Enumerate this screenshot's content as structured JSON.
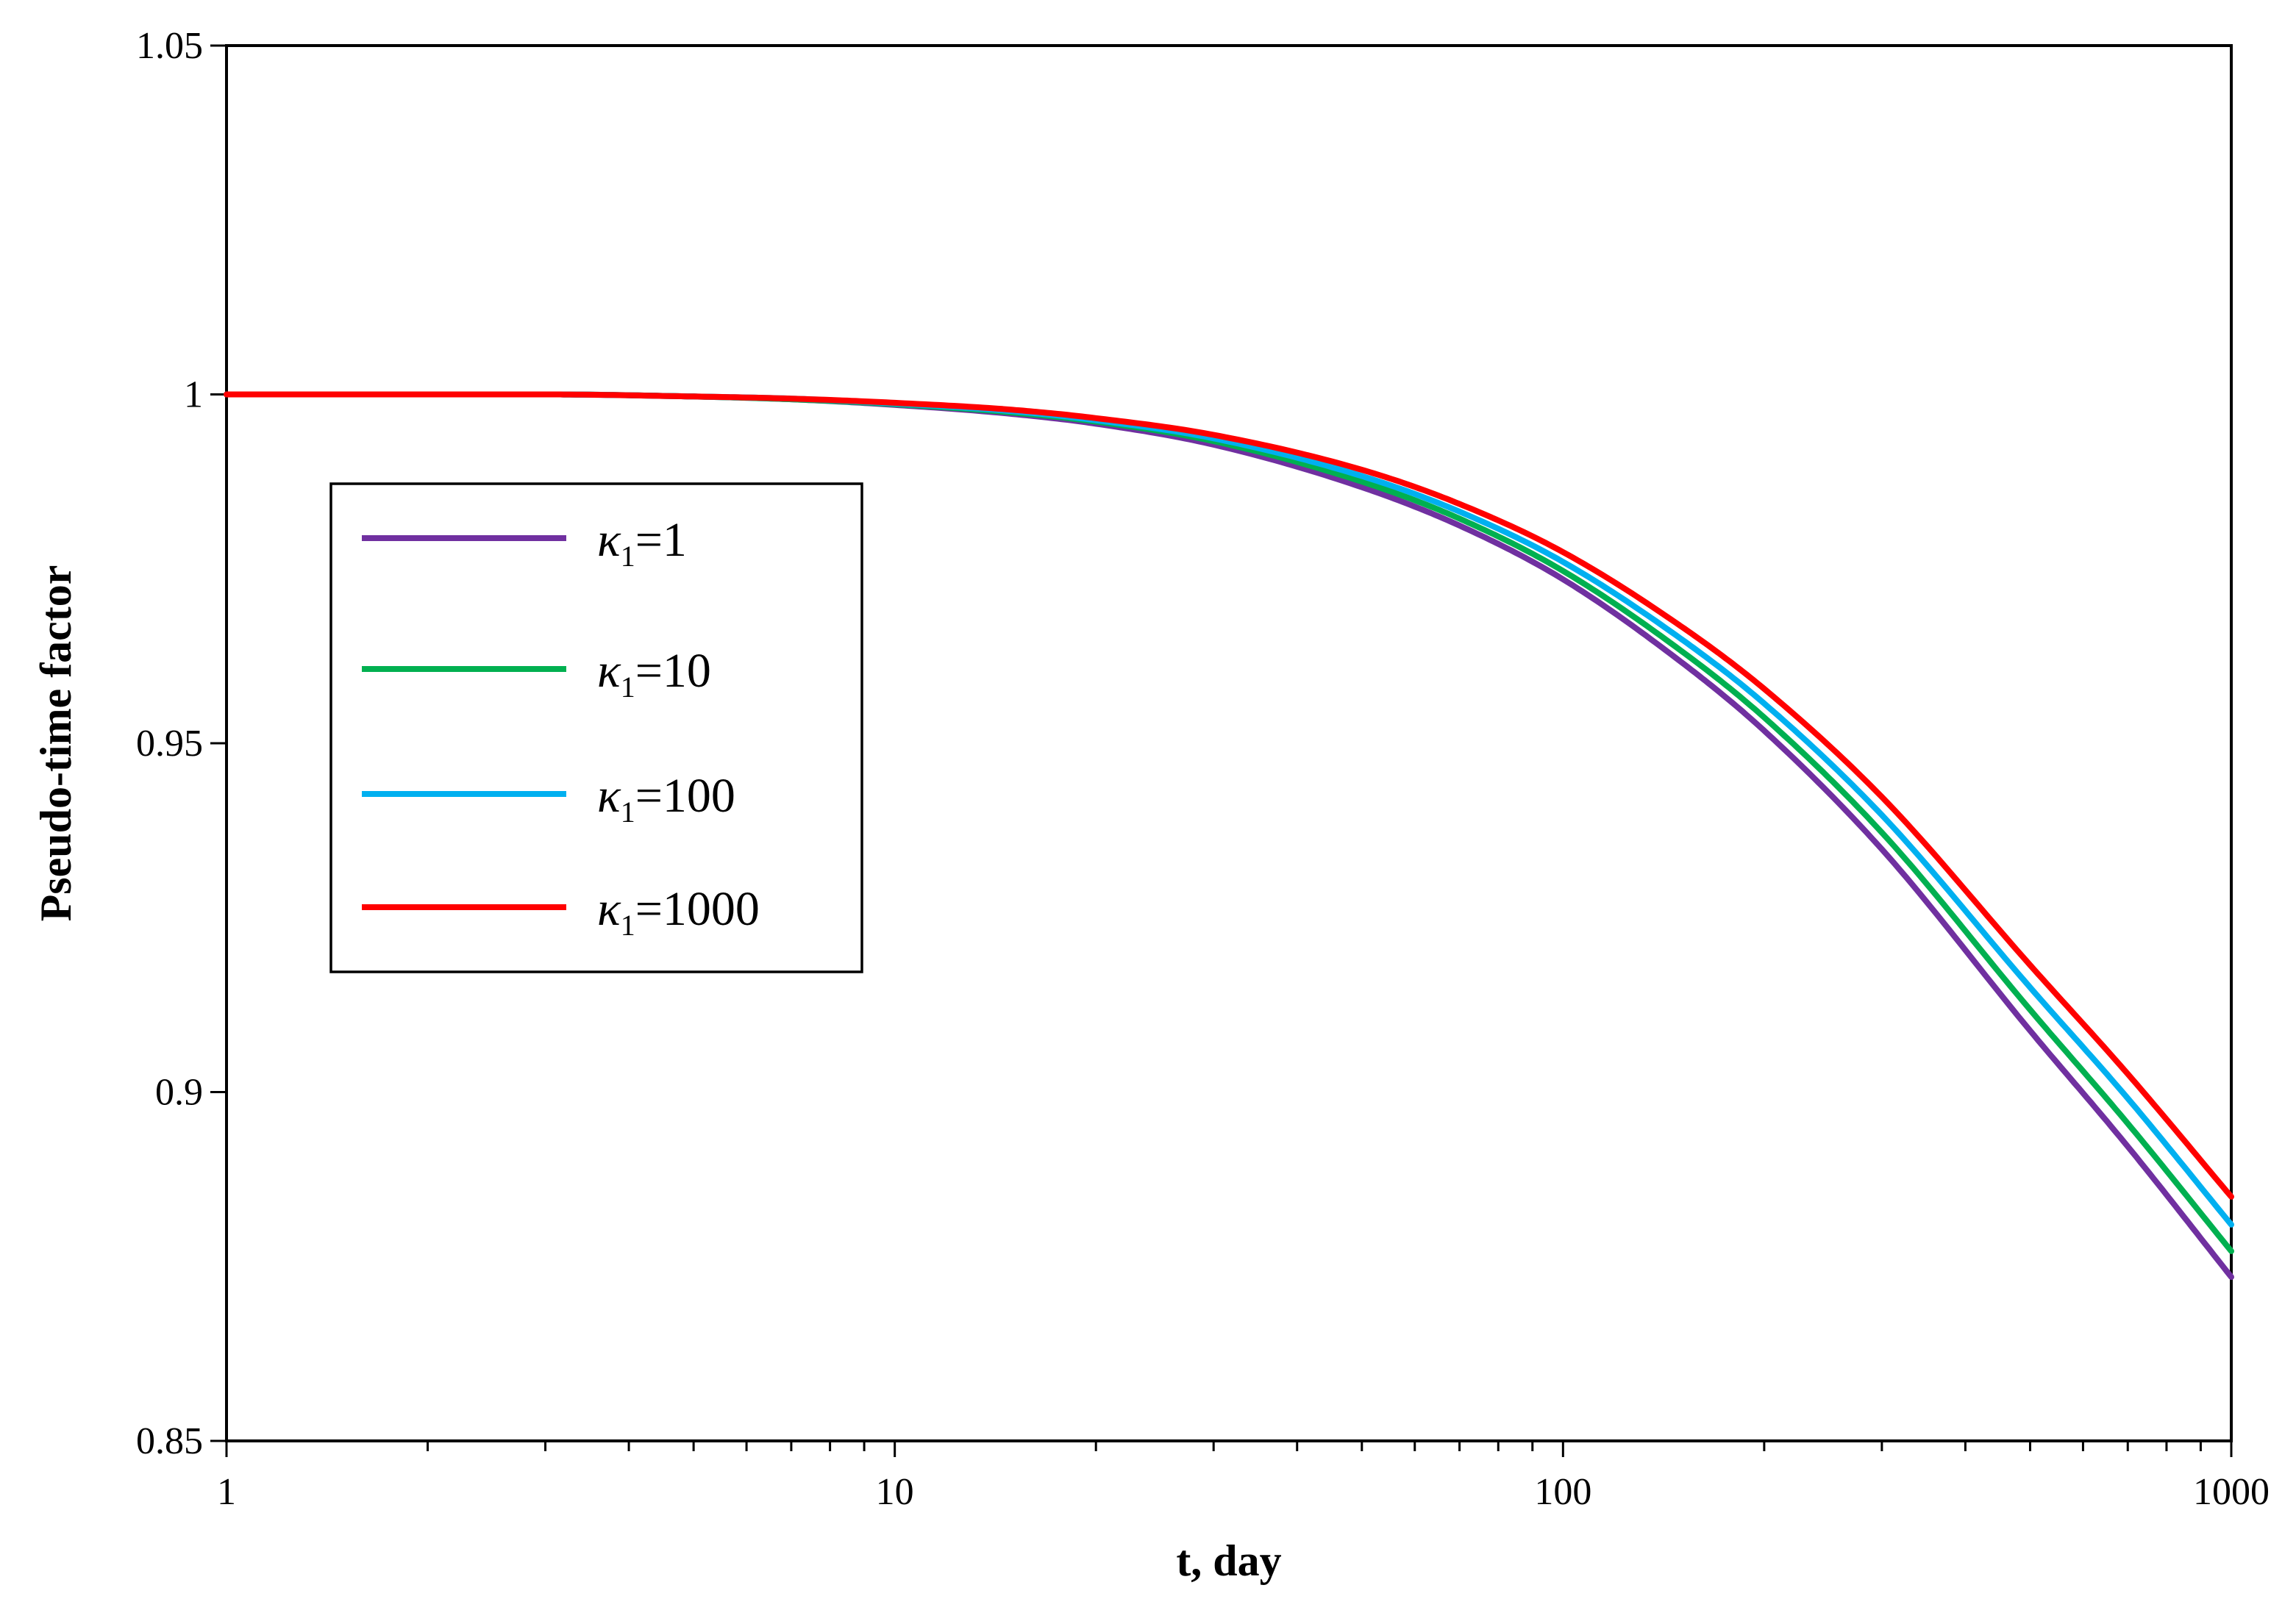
{
  "chart_data": {
    "type": "line",
    "title": "",
    "xlabel": "t, day",
    "ylabel": "Pseudo-time factor",
    "xscale": "log",
    "xlim": [
      1,
      1000
    ],
    "ylim": [
      0.85,
      1.05
    ],
    "x_ticks": [
      1,
      10,
      100,
      1000
    ],
    "x_tick_labels": [
      "1",
      "10",
      "100",
      "1000"
    ],
    "y_ticks": [
      0.85,
      0.9,
      0.95,
      1,
      1.05
    ],
    "y_tick_labels": [
      "0.85",
      "0.9",
      "0.95",
      "1",
      "1.05"
    ],
    "grid": false,
    "legend_position": "upper-left",
    "legend_prefix": "κ",
    "legend_subscript": "1",
    "x": [
      1,
      2,
      3,
      5,
      7,
      10,
      15,
      20,
      30,
      50,
      70,
      100,
      150,
      200,
      300,
      500,
      700,
      1000
    ],
    "series": [
      {
        "name": "=1",
        "color": "#7030a0",
        "values": [
          1.0,
          1.0,
          1.0,
          0.9997,
          0.9993,
          0.9985,
          0.9972,
          0.9958,
          0.9928,
          0.9867,
          0.9812,
          0.9735,
          0.9617,
          0.9518,
          0.9348,
          0.9088,
          0.8922,
          0.8735
        ]
      },
      {
        "name": "=10",
        "color": "#00b050",
        "values": [
          1.0,
          1.0,
          1.0,
          0.9997,
          0.9993,
          0.9986,
          0.9974,
          0.9961,
          0.9933,
          0.9875,
          0.9822,
          0.9747,
          0.9633,
          0.9537,
          0.9372,
          0.9118,
          0.8955,
          0.8772
        ]
      },
      {
        "name": "=100",
        "color": "#00b0f0",
        "values": [
          1.0,
          1.0,
          1.0,
          0.9997,
          0.9994,
          0.9987,
          0.9976,
          0.9963,
          0.9937,
          0.9883,
          0.9832,
          0.976,
          0.965,
          0.9557,
          0.9397,
          0.915,
          0.8991,
          0.881
        ]
      },
      {
        "name": "=1000",
        "color": "#ff0000",
        "values": [
          1.0,
          1.0,
          1.0,
          0.9997,
          0.9994,
          0.9988,
          0.9978,
          0.9966,
          0.9942,
          0.9892,
          0.9843,
          0.9774,
          0.9668,
          0.9578,
          0.9423,
          0.9182,
          0.9026,
          0.885
        ]
      }
    ]
  }
}
